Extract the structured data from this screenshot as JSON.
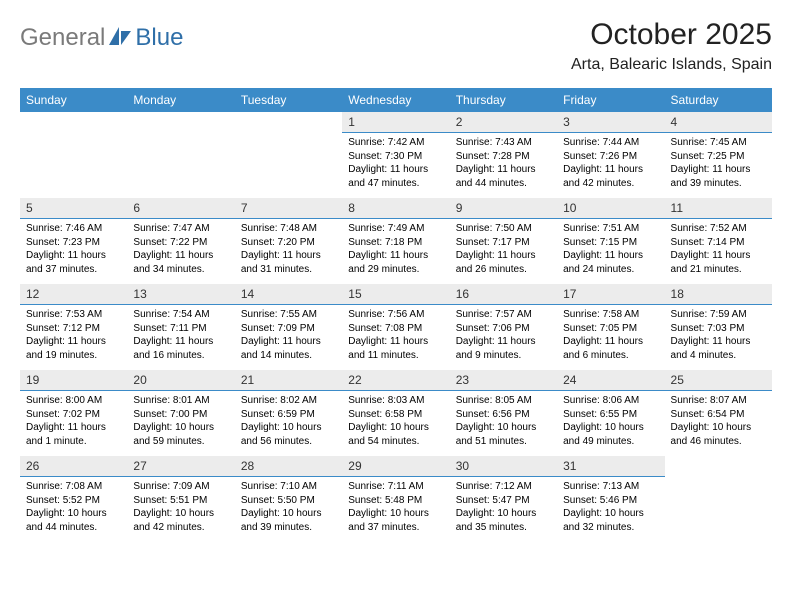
{
  "brand": {
    "general": "General",
    "blue": "Blue"
  },
  "title": "October 2025",
  "location": "Arta, Balearic Islands, Spain",
  "colors": {
    "header_bg": "#3b8bc8",
    "header_text": "#ffffff",
    "daynum_bg": "#ececec",
    "daynum_border": "#3b8bc8",
    "logo_gray": "#7a7a7a",
    "logo_blue": "#2f6fa8",
    "page_bg": "#ffffff"
  },
  "weekdays": [
    "Sunday",
    "Monday",
    "Tuesday",
    "Wednesday",
    "Thursday",
    "Friday",
    "Saturday"
  ],
  "weeks": [
    [
      null,
      null,
      null,
      {
        "n": "1",
        "sr": "7:42 AM",
        "ss": "7:30 PM",
        "dl": "11 hours and 47 minutes."
      },
      {
        "n": "2",
        "sr": "7:43 AM",
        "ss": "7:28 PM",
        "dl": "11 hours and 44 minutes."
      },
      {
        "n": "3",
        "sr": "7:44 AM",
        "ss": "7:26 PM",
        "dl": "11 hours and 42 minutes."
      },
      {
        "n": "4",
        "sr": "7:45 AM",
        "ss": "7:25 PM",
        "dl": "11 hours and 39 minutes."
      }
    ],
    [
      {
        "n": "5",
        "sr": "7:46 AM",
        "ss": "7:23 PM",
        "dl": "11 hours and 37 minutes."
      },
      {
        "n": "6",
        "sr": "7:47 AM",
        "ss": "7:22 PM",
        "dl": "11 hours and 34 minutes."
      },
      {
        "n": "7",
        "sr": "7:48 AM",
        "ss": "7:20 PM",
        "dl": "11 hours and 31 minutes."
      },
      {
        "n": "8",
        "sr": "7:49 AM",
        "ss": "7:18 PM",
        "dl": "11 hours and 29 minutes."
      },
      {
        "n": "9",
        "sr": "7:50 AM",
        "ss": "7:17 PM",
        "dl": "11 hours and 26 minutes."
      },
      {
        "n": "10",
        "sr": "7:51 AM",
        "ss": "7:15 PM",
        "dl": "11 hours and 24 minutes."
      },
      {
        "n": "11",
        "sr": "7:52 AM",
        "ss": "7:14 PM",
        "dl": "11 hours and 21 minutes."
      }
    ],
    [
      {
        "n": "12",
        "sr": "7:53 AM",
        "ss": "7:12 PM",
        "dl": "11 hours and 19 minutes."
      },
      {
        "n": "13",
        "sr": "7:54 AM",
        "ss": "7:11 PM",
        "dl": "11 hours and 16 minutes."
      },
      {
        "n": "14",
        "sr": "7:55 AM",
        "ss": "7:09 PM",
        "dl": "11 hours and 14 minutes."
      },
      {
        "n": "15",
        "sr": "7:56 AM",
        "ss": "7:08 PM",
        "dl": "11 hours and 11 minutes."
      },
      {
        "n": "16",
        "sr": "7:57 AM",
        "ss": "7:06 PM",
        "dl": "11 hours and 9 minutes."
      },
      {
        "n": "17",
        "sr": "7:58 AM",
        "ss": "7:05 PM",
        "dl": "11 hours and 6 minutes."
      },
      {
        "n": "18",
        "sr": "7:59 AM",
        "ss": "7:03 PM",
        "dl": "11 hours and 4 minutes."
      }
    ],
    [
      {
        "n": "19",
        "sr": "8:00 AM",
        "ss": "7:02 PM",
        "dl": "11 hours and 1 minute."
      },
      {
        "n": "20",
        "sr": "8:01 AM",
        "ss": "7:00 PM",
        "dl": "10 hours and 59 minutes."
      },
      {
        "n": "21",
        "sr": "8:02 AM",
        "ss": "6:59 PM",
        "dl": "10 hours and 56 minutes."
      },
      {
        "n": "22",
        "sr": "8:03 AM",
        "ss": "6:58 PM",
        "dl": "10 hours and 54 minutes."
      },
      {
        "n": "23",
        "sr": "8:05 AM",
        "ss": "6:56 PM",
        "dl": "10 hours and 51 minutes."
      },
      {
        "n": "24",
        "sr": "8:06 AM",
        "ss": "6:55 PM",
        "dl": "10 hours and 49 minutes."
      },
      {
        "n": "25",
        "sr": "8:07 AM",
        "ss": "6:54 PM",
        "dl": "10 hours and 46 minutes."
      }
    ],
    [
      {
        "n": "26",
        "sr": "7:08 AM",
        "ss": "5:52 PM",
        "dl": "10 hours and 44 minutes."
      },
      {
        "n": "27",
        "sr": "7:09 AM",
        "ss": "5:51 PM",
        "dl": "10 hours and 42 minutes."
      },
      {
        "n": "28",
        "sr": "7:10 AM",
        "ss": "5:50 PM",
        "dl": "10 hours and 39 minutes."
      },
      {
        "n": "29",
        "sr": "7:11 AM",
        "ss": "5:48 PM",
        "dl": "10 hours and 37 minutes."
      },
      {
        "n": "30",
        "sr": "7:12 AM",
        "ss": "5:47 PM",
        "dl": "10 hours and 35 minutes."
      },
      {
        "n": "31",
        "sr": "7:13 AM",
        "ss": "5:46 PM",
        "dl": "10 hours and 32 minutes."
      },
      null
    ]
  ],
  "labels": {
    "sunrise": "Sunrise:",
    "sunset": "Sunset:",
    "daylight": "Daylight:"
  }
}
